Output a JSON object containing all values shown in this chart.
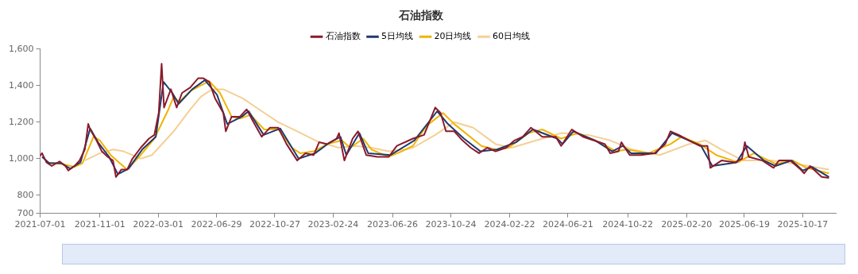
{
  "chart_data": {
    "type": "line",
    "title": "石油指数",
    "legend": "top",
    "grid": false,
    "marker": "none",
    "line_style": "solid",
    "xlim": [
      "2021-07-01",
      "2025-12-24"
    ],
    "xticks": [
      "2021-07-01",
      "2021-11-01",
      "2022-03-01",
      "2022-06-29",
      "2022-10-27",
      "2023-02-24",
      "2023-06-26",
      "2023-10-24",
      "2024-02-22",
      "2024-06-21",
      "2024-10-22",
      "2025-02-20",
      "2025-06-19",
      "2025-10-17"
    ],
    "ylim": [
      700,
      1600
    ],
    "yticks": [
      700,
      800,
      {
        "value": 1000,
        "label": "1,000"
      },
      {
        "value": 1200,
        "label": "1,200"
      },
      {
        "value": 1400,
        "label": "1,400"
      },
      {
        "value": 1600,
        "label": "1,600"
      }
    ],
    "series": [
      {
        "name": "石油指数",
        "color": "#8b1a2b",
        "x": [
          "2021-07-01",
          "2021-07-05",
          "2021-07-14",
          "2021-07-25",
          "2021-08-10",
          "2021-08-22",
          "2021-08-28",
          "2021-09-10",
          "2021-09-20",
          "2021-10-01",
          "2021-10-08",
          "2021-10-12",
          "2021-10-25",
          "2021-11-05",
          "2021-11-17",
          "2021-11-28",
          "2021-12-04",
          "2021-12-15",
          "2021-12-27",
          "2022-01-07",
          "2022-01-24",
          "2022-02-10",
          "2022-02-21",
          "2022-03-02",
          "2022-03-08",
          "2022-03-13",
          "2022-03-27",
          "2022-04-08",
          "2022-04-19",
          "2022-05-06",
          "2022-05-22",
          "2022-06-02",
          "2022-06-14",
          "2022-06-26",
          "2022-07-13",
          "2022-07-18",
          "2022-07-30",
          "2022-08-16",
          "2022-08-30",
          "2022-09-13",
          "2022-09-30",
          "2022-10-17",
          "2022-11-03",
          "2022-11-20",
          "2022-12-12",
          "2022-12-29",
          "2023-01-15",
          "2023-01-26",
          "2023-02-12",
          "2023-03-03",
          "2023-03-08",
          "2023-03-19",
          "2023-04-05",
          "2023-04-16",
          "2023-05-03",
          "2023-05-26",
          "2023-06-18",
          "2023-07-05",
          "2023-08-07",
          "2023-08-30",
          "2023-09-22",
          "2023-10-03",
          "2023-10-14",
          "2023-10-31",
          "2023-11-17",
          "2023-12-04",
          "2023-12-21",
          "2024-01-07",
          "2024-01-24",
          "2024-02-15",
          "2024-03-03",
          "2024-03-20",
          "2024-04-06",
          "2024-04-29",
          "2024-05-27",
          "2024-06-07",
          "2024-06-29",
          "2024-07-22",
          "2024-08-13",
          "2024-09-05",
          "2024-09-16",
          "2024-10-03",
          "2024-10-09",
          "2024-10-26",
          "2024-11-18",
          "2024-12-16",
          "2025-01-07",
          "2025-01-18",
          "2025-02-04",
          "2025-02-25",
          "2025-03-19",
          "2025-04-04",
          "2025-04-10",
          "2025-05-03",
          "2025-05-31",
          "2025-06-14",
          "2025-06-20",
          "2025-06-28",
          "2025-07-26",
          "2025-08-18",
          "2025-08-29",
          "2025-09-21",
          "2025-10-13",
          "2025-10-20",
          "2025-11-01",
          "2025-11-25",
          "2025-12-10"
        ],
        "values": [
          1015,
          1030,
          980,
          960,
          985,
          960,
          935,
          960,
          990,
          1050,
          1190,
          1160,
          1100,
          1040,
          1010,
          990,
          900,
          940,
          940,
          1000,
          1060,
          1110,
          1130,
          1250,
          1520,
          1280,
          1380,
          1280,
          1360,
          1390,
          1440,
          1440,
          1420,
          1330,
          1250,
          1150,
          1230,
          1230,
          1270,
          1200,
          1120,
          1170,
          1170,
          1080,
          990,
          1030,
          1020,
          1090,
          1080,
          1110,
          1140,
          990,
          1110,
          1150,
          1020,
          1010,
          1010,
          1070,
          1110,
          1130,
          1280,
          1250,
          1150,
          1150,
          1100,
          1060,
          1030,
          1060,
          1040,
          1060,
          1100,
          1120,
          1170,
          1120,
          1120,
          1070,
          1160,
          1120,
          1100,
          1080,
          1030,
          1040,
          1090,
          1020,
          1020,
          1030,
          1080,
          1150,
          1130,
          1100,
          1070,
          1070,
          950,
          990,
          980,
          1000,
          1090,
          1010,
          990,
          950,
          990,
          990,
          940,
          920,
          960,
          900,
          895
        ]
      },
      {
        "name": "5日均线",
        "color": "#1f3a6e",
        "x": [
          "2021-07-05",
          "2021-07-20",
          "2021-08-14",
          "2021-09-01",
          "2021-09-22",
          "2021-10-12",
          "2021-10-28",
          "2021-11-20",
          "2021-12-08",
          "2021-12-30",
          "2022-01-27",
          "2022-02-24",
          "2022-03-12",
          "2022-03-30",
          "2022-04-12",
          "2022-05-10",
          "2022-06-05",
          "2022-06-30",
          "2022-07-21",
          "2022-08-20",
          "2022-09-03",
          "2022-10-04",
          "2022-11-07",
          "2022-12-15",
          "2023-01-18",
          "2023-02-15",
          "2023-03-11",
          "2023-03-23",
          "2023-04-19",
          "2023-05-07",
          "2023-06-22",
          "2023-08-10",
          "2023-09-26",
          "2023-10-18",
          "2023-11-20",
          "2023-12-24",
          "2024-01-27",
          "2024-03-06",
          "2024-04-10",
          "2024-05-30",
          "2024-06-10",
          "2024-07-02",
          "2024-08-16",
          "2024-09-20",
          "2024-10-12",
          "2024-10-29",
          "2024-12-19",
          "2025-01-21",
          "2025-02-07",
          "2025-03-22",
          "2025-04-14",
          "2025-06-03",
          "2025-06-24",
          "2025-07-29",
          "2025-08-22",
          "2025-09-24",
          "2025-10-17",
          "2025-11-05",
          "2025-12-10"
        ],
        "values": [
          1010,
          975,
          975,
          945,
          980,
          1165,
          1090,
          1010,
          915,
          945,
          1050,
          1120,
          1420,
          1360,
          1300,
          1380,
          1430,
          1350,
          1190,
          1230,
          1260,
          1130,
          1165,
          1000,
          1030,
          1085,
          1120,
          1020,
          1140,
          1030,
          1020,
          1100,
          1260,
          1190,
          1110,
          1040,
          1050,
          1090,
          1160,
          1110,
          1080,
          1150,
          1100,
          1040,
          1070,
          1030,
          1030,
          1140,
          1120,
          1070,
          960,
          980,
          1070,
          990,
          960,
          990,
          935,
          955,
          900
        ]
      },
      {
        "name": "20日均线",
        "color": "#f0b400",
        "x": [
          "2021-07-14",
          "2021-08-17",
          "2021-09-10",
          "2021-09-26",
          "2021-10-19",
          "2021-11-01",
          "2021-11-23",
          "2021-12-27",
          "2022-01-24",
          "2022-02-21",
          "2022-03-22",
          "2022-04-02",
          "2022-04-13",
          "2022-05-06",
          "2022-06-14",
          "2022-07-06",
          "2022-07-30",
          "2022-08-16",
          "2022-09-07",
          "2022-10-05",
          "2022-11-03",
          "2022-12-01",
          "2022-12-18",
          "2023-01-15",
          "2023-02-12",
          "2023-03-14",
          "2023-03-31",
          "2023-04-27",
          "2023-05-14",
          "2023-06-18",
          "2023-07-15",
          "2023-08-07",
          "2023-09-04",
          "2023-10-08",
          "2023-10-31",
          "2023-12-26",
          "2024-01-24",
          "2024-02-20",
          "2024-04-01",
          "2024-04-29",
          "2024-06-07",
          "2024-07-11",
          "2024-08-25",
          "2024-09-28",
          "2024-10-20",
          "2024-12-04",
          "2025-01-18",
          "2025-02-10",
          "2025-03-19",
          "2025-04-22",
          "2025-06-06",
          "2025-07-09",
          "2025-07-31",
          "2025-08-24",
          "2025-09-27",
          "2025-10-25",
          "2025-12-10"
        ],
        "values": [
          980,
          970,
          955,
          975,
          1120,
          1100,
          1020,
          940,
          1020,
          1110,
          1270,
          1340,
          1310,
          1370,
          1425,
          1360,
          1230,
          1220,
          1240,
          1160,
          1160,
          1060,
          1030,
          1040,
          1080,
          1100,
          1060,
          1110,
          1050,
          1010,
          1040,
          1070,
          1180,
          1250,
          1190,
          1070,
          1050,
          1060,
          1140,
          1160,
          1110,
          1140,
          1090,
          1040,
          1050,
          1030,
          1080,
          1120,
          1080,
          1020,
          980,
          1030,
          1000,
          970,
          990,
          950,
          920
        ]
      },
      {
        "name": "60日均线",
        "color": "#f5cf94",
        "x": [
          "2021-10-01",
          "2021-11-01",
          "2021-11-28",
          "2021-12-20",
          "2022-01-24",
          "2022-02-16",
          "2022-04-02",
          "2022-05-06",
          "2022-05-28",
          "2022-06-20",
          "2022-07-13",
          "2022-08-22",
          "2022-09-30",
          "2022-11-03",
          "2022-12-12",
          "2023-01-26",
          "2023-03-08",
          "2023-04-11",
          "2023-05-14",
          "2023-06-18",
          "2023-07-22",
          "2023-08-07",
          "2023-09-22",
          "2023-10-31",
          "2023-12-09",
          "2024-01-24",
          "2024-02-26",
          "2024-04-17",
          "2024-06-07",
          "2024-08-02",
          "2024-09-16",
          "2024-10-31",
          "2024-12-27",
          "2025-02-25",
          "2025-03-31",
          "2025-05-03",
          "2025-06-17",
          "2025-08-13",
          "2025-10-07",
          "2025-12-10"
        ],
        "values": [
          990,
          1030,
          1050,
          1040,
          1000,
          1020,
          1150,
          1270,
          1340,
          1380,
          1380,
          1330,
          1260,
          1200,
          1150,
          1090,
          1060,
          1070,
          1060,
          1040,
          1050,
          1060,
          1130,
          1200,
          1170,
          1080,
          1060,
          1100,
          1140,
          1130,
          1100,
          1050,
          1020,
          1080,
          1100,
          1050,
          990,
          990,
          970,
          940
        ]
      }
    ]
  }
}
